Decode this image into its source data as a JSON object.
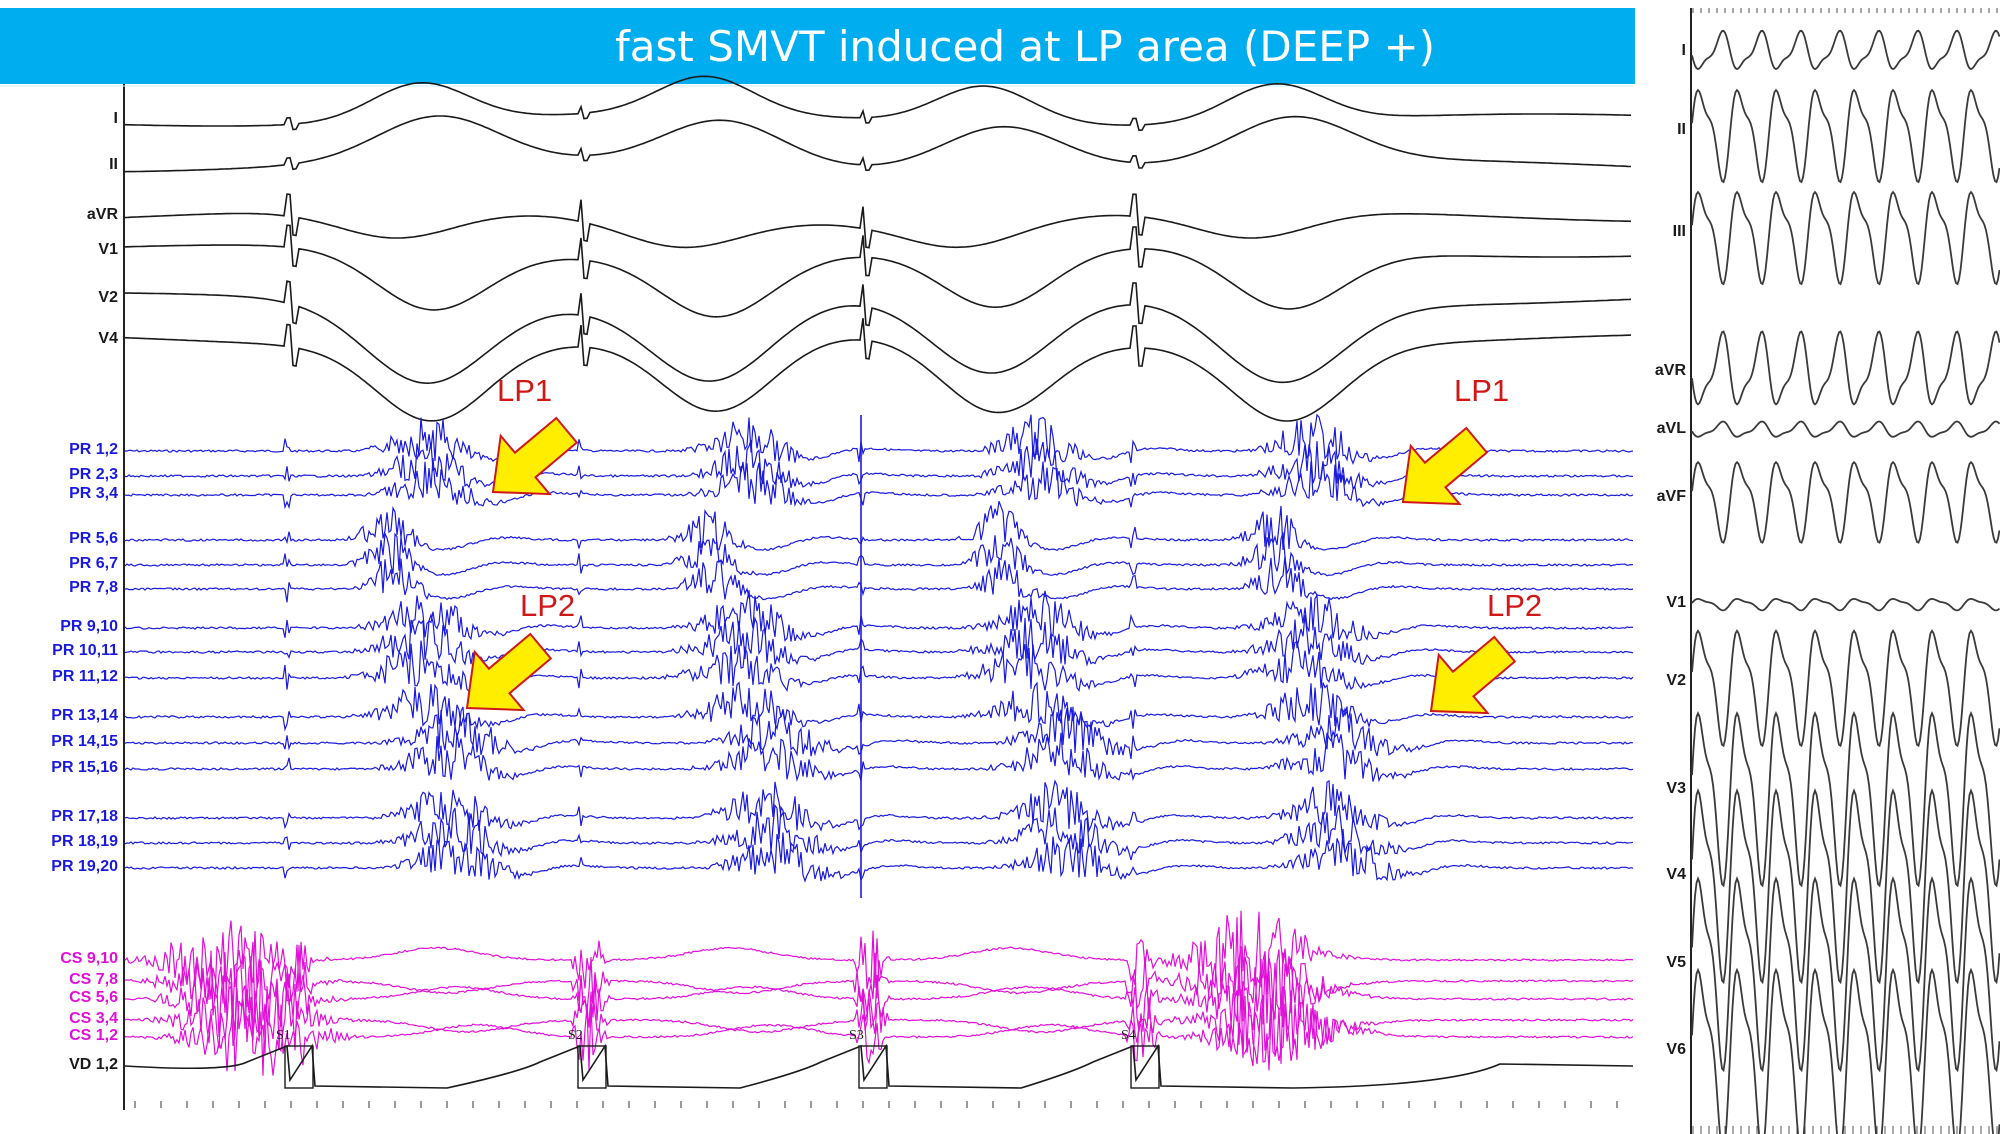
{
  "title": "fast SMVT induced at LP area (DEEP +)",
  "colors": {
    "title_bar": "#00aeef",
    "surface_ecg": "#1a1a1a",
    "pr_catheter": "#1a1adc",
    "cs_catheter": "#e010d8",
    "annotation": "#d01818",
    "arrow_fill": "#ffee00",
    "arrow_outline": "#d01818"
  },
  "left_panel": {
    "surface_leads": [
      "I",
      "II",
      "aVR",
      "V1",
      "V2",
      "V4"
    ],
    "pr_leads": [
      "PR 1,2",
      "PR 2,3",
      "PR 3,4",
      "PR 5,6",
      "PR 6,7",
      "PR 7,8",
      "PR 9,10",
      "PR 10,11",
      "PR 11,12",
      "PR 13,14",
      "PR 14,15",
      "PR 15,16",
      "PR 17,18",
      "PR 18,19",
      "PR 19,20"
    ],
    "cs_leads": [
      "CS 9,10",
      "CS 7,8",
      "CS 5,6",
      "CS 3,4",
      "CS 1,2"
    ],
    "vd_lead": "VD 1,2",
    "stimuli": [
      "S1",
      "S2",
      "S3",
      "S4"
    ],
    "annotations": [
      "LP1",
      "LP1",
      "LP2",
      "LP2"
    ]
  },
  "right_panel": {
    "leads": [
      "I",
      "II",
      "III",
      "aVR",
      "aVL",
      "aVF",
      "V1",
      "V2",
      "V3",
      "V4",
      "V5",
      "V6"
    ]
  }
}
